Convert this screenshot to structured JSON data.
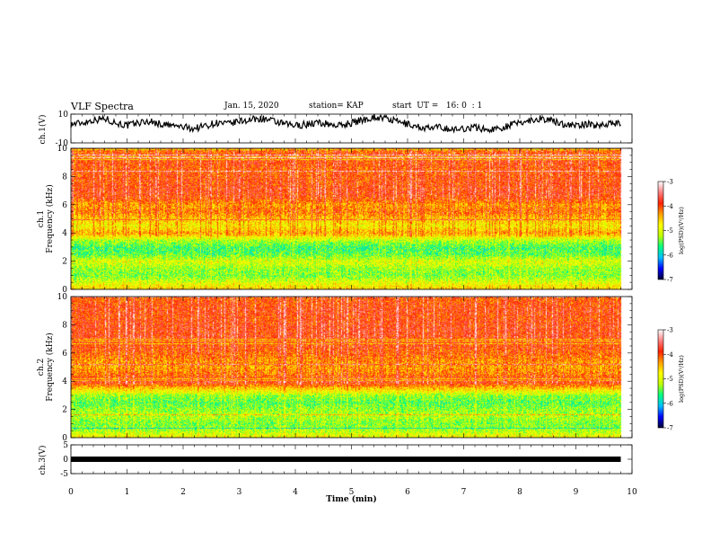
{
  "header": {
    "title": "VLF Spectra",
    "date": "Jan. 15, 2020",
    "station": "station= KAP",
    "start": "start  UT =   16: 0  : 1"
  },
  "chart_data": [
    {
      "type": "line",
      "title": "",
      "ylabel": "ch.1(V)",
      "ylim": [
        -10,
        10
      ],
      "yticks": [
        "10",
        "-10"
      ],
      "x": [
        0,
        0.2,
        0.4,
        0.6,
        0.8,
        1,
        1.2,
        1.4,
        1.6,
        1.8,
        2,
        2.2,
        2.4,
        2.6,
        2.8,
        3,
        3.2,
        3.4,
        3.6,
        3.8,
        4,
        4.2,
        4.4,
        4.6,
        4.8,
        5,
        5.2,
        5.4,
        5.6,
        5.8,
        6,
        6.2,
        6.4,
        6.6,
        6.8,
        7,
        7.2,
        7.4,
        7.6,
        7.8,
        8,
        8.2,
        8.4,
        8.6,
        8.8,
        9,
        9.2,
        9.4,
        9.6,
        9.8
      ],
      "values": [
        3,
        4,
        6,
        7,
        4,
        2,
        4,
        5,
        3,
        2,
        1,
        0,
        2,
        4,
        3,
        5,
        6,
        7,
        5,
        3,
        2,
        3,
        4,
        3,
        2,
        4,
        6,
        8,
        7,
        5,
        3,
        1,
        0,
        1,
        -1,
        0,
        1,
        -1,
        0,
        2,
        4,
        6,
        7,
        5,
        3,
        2,
        3,
        2,
        4,
        3
      ]
    },
    {
      "type": "heatmap",
      "ylabel": "ch.1\nFrequency (kHz)",
      "yticks": [
        "0",
        "2",
        "4",
        "6",
        "8",
        "10"
      ],
      "ylim": [
        0,
        10
      ],
      "colorbar": {
        "label": "log(PSD)(V²/Hz)",
        "ticks": [
          "-3",
          "-4",
          "-5",
          "-6",
          "-7"
        ],
        "range": [
          -7,
          -3
        ]
      },
      "freq_profile_khz": [
        0,
        0.5,
        1,
        1.5,
        2,
        2.5,
        3,
        3.5,
        4,
        4.5,
        5,
        5.5,
        6,
        6.5,
        7,
        7.5,
        8,
        8.5,
        9,
        9.5,
        10
      ],
      "level_profile": [
        -4.6,
        -5.0,
        -5.4,
        -5.3,
        -5.0,
        -5.5,
        -5.6,
        -5.2,
        -4.4,
        -4.8,
        -4.6,
        -4.2,
        -4.4,
        -4.0,
        -3.9,
        -4.0,
        -4.0,
        -4.1,
        -4.0,
        -4.0,
        -4.2
      ]
    },
    {
      "type": "heatmap",
      "ylabel": "ch.2\nFrequency (kHz)",
      "yticks": [
        "0",
        "2",
        "4",
        "6",
        "8",
        "10"
      ],
      "ylim": [
        0,
        10
      ],
      "colorbar": {
        "label": "log(PSD)(V²/Hz)",
        "ticks": [
          "-3",
          "-4",
          "-5",
          "-6",
          "-7"
        ],
        "range": [
          -7,
          -3
        ]
      },
      "freq_profile_khz": [
        0,
        0.5,
        1,
        1.5,
        2,
        2.5,
        3,
        3.5,
        4,
        4.5,
        5,
        5.5,
        6,
        6.5,
        7,
        7.5,
        8,
        8.5,
        9,
        9.5,
        10
      ],
      "level_profile": [
        -4.8,
        -5.2,
        -5.4,
        -5.2,
        -5.3,
        -5.5,
        -5.3,
        -4.6,
        -3.8,
        -4.2,
        -4.4,
        -4.3,
        -4.1,
        -4.0,
        -3.9,
        -3.9,
        -3.9,
        -4.0,
        -3.9,
        -4.0,
        -4.1
      ]
    },
    {
      "type": "line",
      "ylabel": "ch.3(V)",
      "ylim": [
        -5,
        5
      ],
      "yticks": [
        "5",
        "0",
        "-5"
      ],
      "x": [
        0,
        9.8
      ],
      "values": [
        0,
        0
      ]
    }
  ],
  "xaxis": {
    "label": "Time (min)",
    "ticks": [
      "0",
      "1",
      "2",
      "3",
      "4",
      "5",
      "6",
      "7",
      "8",
      "9",
      "10"
    ],
    "xlim": [
      0,
      10
    ]
  },
  "colors": {
    "line": "#000000",
    "colormap": [
      "#000033",
      "#0000ff",
      "#00bfff",
      "#00ff80",
      "#c0ff00",
      "#ffff00",
      "#ffa000",
      "#ff2000",
      "#ff8080",
      "#ffffff"
    ]
  }
}
